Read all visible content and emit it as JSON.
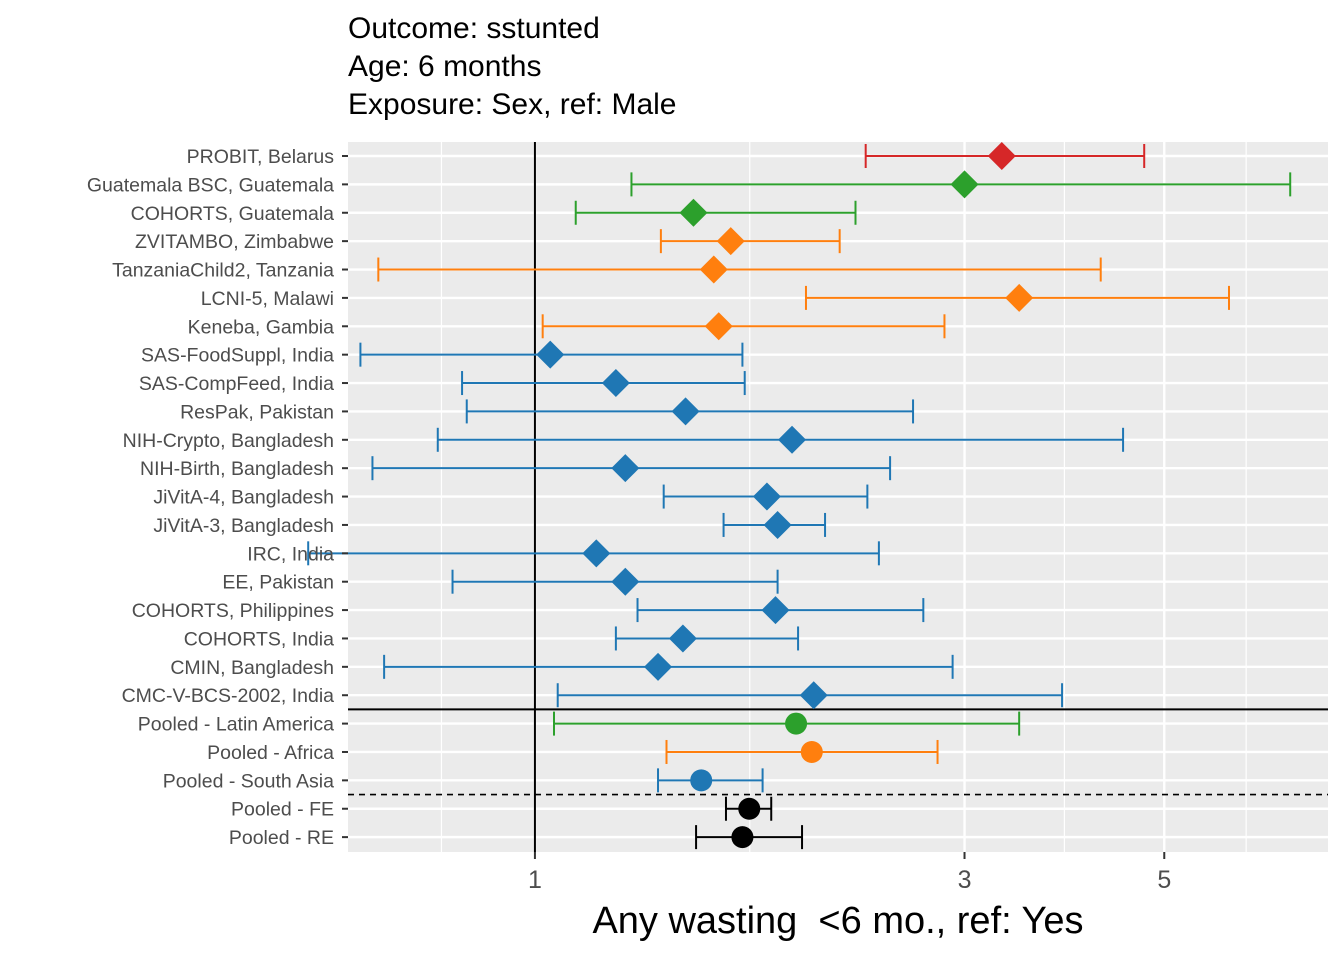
{
  "chart_data": {
    "type": "forest",
    "title_lines": [
      "Outcome: sstunted",
      "Age: 6 months",
      "Exposure: Sex, ref: Male"
    ],
    "xlabel": "Any wasting  <6 mo., ref: Yes",
    "x_scale": "log",
    "xlim": [
      0.62,
      7.6
    ],
    "x_ticks": [
      {
        "value": 1,
        "label": "1"
      },
      {
        "value": 3,
        "label": "3"
      },
      {
        "value": 5,
        "label": "5"
      }
    ],
    "reference_line": 1,
    "colors": {
      "Europe": "#d62728",
      "Latin America": "#2ca02c",
      "Africa": "#ff7f0e",
      "South Asia": "#1f77b4",
      "Pooled": "#000000"
    },
    "studies": [
      {
        "label": "PROBIT, Belarus",
        "est": 3.3,
        "lo": 2.33,
        "hi": 4.75,
        "region": "Europe",
        "shape": "diamond"
      },
      {
        "label": "Guatemala BSC, Guatemala",
        "est": 3.0,
        "lo": 1.28,
        "hi": 6.9,
        "region": "Latin America",
        "shape": "diamond"
      },
      {
        "label": "COHORTS, Guatemala",
        "est": 1.5,
        "lo": 1.11,
        "hi": 2.27,
        "region": "Latin America",
        "shape": "diamond"
      },
      {
        "label": "ZVITAMBO, Zimbabwe",
        "est": 1.65,
        "lo": 1.38,
        "hi": 2.18,
        "region": "Africa",
        "shape": "diamond"
      },
      {
        "label": "TanzaniaChild2, Tanzania",
        "est": 1.58,
        "lo": 0.67,
        "hi": 4.25,
        "region": "Africa",
        "shape": "diamond"
      },
      {
        "label": "LCNI-5, Malawi",
        "est": 3.45,
        "lo": 2.0,
        "hi": 5.9,
        "region": "Africa",
        "shape": "diamond"
      },
      {
        "label": "Keneba, Gambia",
        "est": 1.6,
        "lo": 1.02,
        "hi": 2.85,
        "region": "Africa",
        "shape": "diamond"
      },
      {
        "label": "SAS-FoodSuppl, India",
        "est": 1.04,
        "lo": 0.64,
        "hi": 1.7,
        "region": "South Asia",
        "shape": "diamond"
      },
      {
        "label": "SAS-CompFeed, India",
        "est": 1.23,
        "lo": 0.83,
        "hi": 1.71,
        "region": "South Asia",
        "shape": "diamond"
      },
      {
        "label": "ResPak, Pakistan",
        "est": 1.47,
        "lo": 0.84,
        "hi": 2.63,
        "region": "South Asia",
        "shape": "diamond"
      },
      {
        "label": "NIH-Crypto, Bangladesh",
        "est": 1.93,
        "lo": 0.78,
        "hi": 4.5,
        "region": "South Asia",
        "shape": "diamond"
      },
      {
        "label": "NIH-Birth, Bangladesh",
        "est": 1.26,
        "lo": 0.66,
        "hi": 2.48,
        "region": "South Asia",
        "shape": "diamond"
      },
      {
        "label": "JiVitA-4, Bangladesh",
        "est": 1.81,
        "lo": 1.39,
        "hi": 2.34,
        "region": "South Asia",
        "shape": "diamond"
      },
      {
        "label": "JiVitA-3, Bangladesh",
        "est": 1.86,
        "lo": 1.62,
        "hi": 2.1,
        "region": "South Asia",
        "shape": "diamond"
      },
      {
        "label": "IRC, India",
        "est": 1.17,
        "lo": 0.56,
        "hi": 2.41,
        "region": "South Asia",
        "shape": "diamond"
      },
      {
        "label": "EE, Pakistan",
        "est": 1.26,
        "lo": 0.81,
        "hi": 1.86,
        "region": "South Asia",
        "shape": "diamond"
      },
      {
        "label": "COHORTS, Philippines",
        "est": 1.85,
        "lo": 1.3,
        "hi": 2.7,
        "region": "South Asia",
        "shape": "diamond"
      },
      {
        "label": "COHORTS, India",
        "est": 1.46,
        "lo": 1.23,
        "hi": 1.96,
        "region": "South Asia",
        "shape": "diamond"
      },
      {
        "label": "CMIN, Bangladesh",
        "est": 1.37,
        "lo": 0.68,
        "hi": 2.91,
        "region": "South Asia",
        "shape": "diamond"
      },
      {
        "label": "CMC-V-BCS-2002, India",
        "est": 2.04,
        "lo": 1.06,
        "hi": 3.85,
        "region": "South Asia",
        "shape": "diamond"
      }
    ],
    "pooled": [
      {
        "label": "Pooled - Latin America",
        "est": 1.95,
        "lo": 1.05,
        "hi": 3.45,
        "region": "Latin America",
        "shape": "circle"
      },
      {
        "label": "Pooled - Africa",
        "est": 2.03,
        "lo": 1.4,
        "hi": 2.8,
        "region": "Africa",
        "shape": "circle"
      },
      {
        "label": "Pooled - South Asia",
        "est": 1.53,
        "lo": 1.37,
        "hi": 1.79,
        "region": "South Asia",
        "shape": "circle"
      },
      {
        "label": "Pooled - FE",
        "est": 1.73,
        "lo": 1.63,
        "hi": 1.83,
        "region": "Pooled",
        "shape": "circle"
      },
      {
        "label": "Pooled - RE",
        "est": 1.7,
        "lo": 1.51,
        "hi": 1.98,
        "region": "Pooled",
        "shape": "circle"
      }
    ]
  }
}
